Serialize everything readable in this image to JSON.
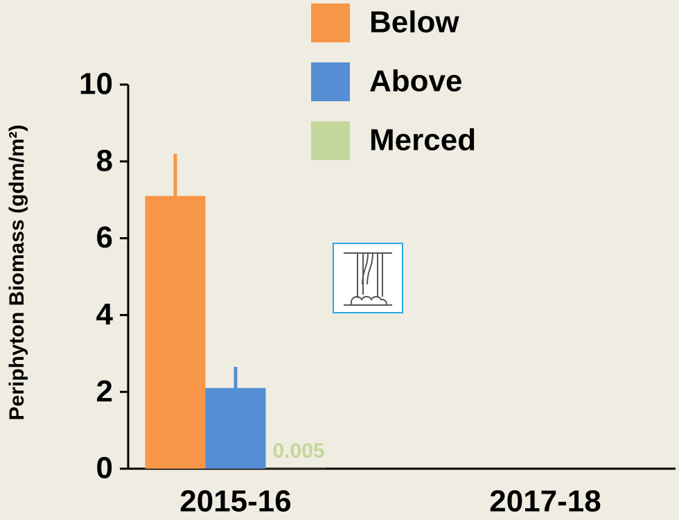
{
  "chart_data": {
    "type": "bar",
    "y_label": "Periphyton Biomass (gdm/m²)",
    "categories": [
      "2015-16",
      "2017-18"
    ],
    "series": [
      {
        "name": "Below",
        "color": "#f79646",
        "values": [
          7.1,
          null
        ],
        "errors": [
          1.1,
          null
        ]
      },
      {
        "name": "Above",
        "color": "#558ed5",
        "values": [
          2.1,
          null
        ],
        "errors": [
          0.55,
          null
        ]
      },
      {
        "name": "Merced",
        "color": "#c4d79b",
        "values": [
          0.005,
          null
        ]
      }
    ],
    "data_label_series": 2,
    "ylim": [
      0,
      10
    ],
    "yticks": [
      0,
      2,
      4,
      6,
      8,
      10
    ],
    "grid": false
  }
}
